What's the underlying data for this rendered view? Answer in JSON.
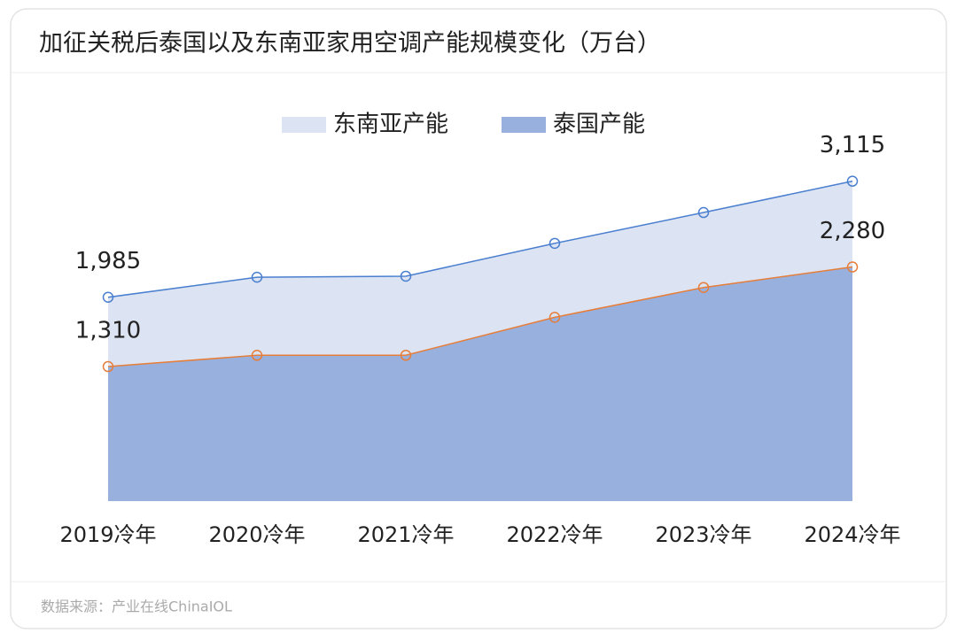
{
  "chart_data": {
    "type": "area",
    "title": "加征关税后泰国以及东南亚家用空调产能规模变化（万台）",
    "categories": [
      "2019冷年",
      "2020冷年",
      "2021冷年",
      "2022冷年",
      "2023冷年",
      "2024冷年"
    ],
    "series": [
      {
        "name": "东南亚产能",
        "color": "#4a7fcf",
        "fill": "#dce3f3",
        "values": [
          1985,
          2180,
          2190,
          2510,
          2810,
          3115
        ],
        "value_labels": [
          "1,985",
          null,
          null,
          null,
          null,
          "3,115"
        ]
      },
      {
        "name": "泰国产能",
        "color": "#e67e3a",
        "fill": "#98b0de",
        "values": [
          1310,
          1420,
          1420,
          1790,
          2080,
          2280
        ],
        "value_labels": [
          "1,310",
          null,
          null,
          null,
          null,
          "2,280"
        ]
      }
    ],
    "ylim": [
      0,
      3500
    ],
    "legend": "top",
    "source": "数据来源：产业在线ChinaIOL"
  }
}
